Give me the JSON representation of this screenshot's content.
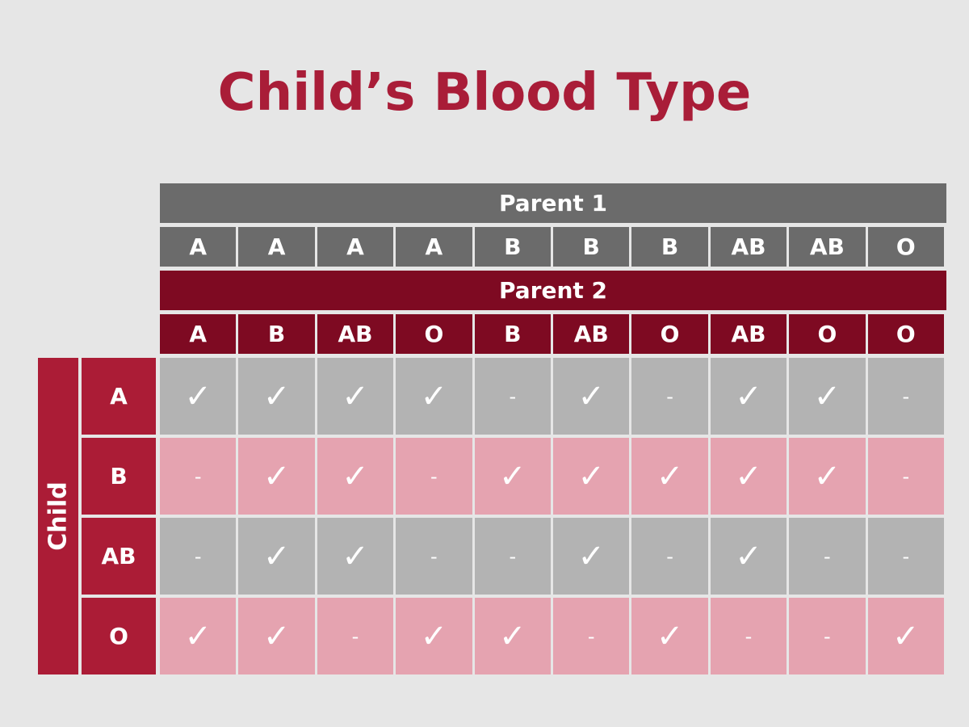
{
  "title": "Child’s Blood Type",
  "table": {
    "parent1_label": "Parent 1",
    "parent1": [
      "A",
      "A",
      "A",
      "A",
      "B",
      "B",
      "B",
      "AB",
      "AB",
      "O"
    ],
    "parent2_label": "Parent 2",
    "parent2": [
      "A",
      "B",
      "AB",
      "O",
      "B",
      "AB",
      "O",
      "AB",
      "O",
      "O"
    ],
    "child_label": "Child",
    "rows": [
      {
        "label": "A",
        "cells": [
          "✓",
          "✓",
          "✓",
          "✓",
          "-",
          "✓",
          "-",
          "✓",
          "✓",
          "-"
        ]
      },
      {
        "label": "B",
        "cells": [
          "-",
          "✓",
          "✓",
          "-",
          "✓",
          "✓",
          "✓",
          "✓",
          "✓",
          "-"
        ]
      },
      {
        "label": "AB",
        "cells": [
          "-",
          "✓",
          "✓",
          "-",
          "-",
          "✓",
          "-",
          "✓",
          "-",
          "-"
        ]
      },
      {
        "label": "O",
        "cells": [
          "✓",
          "✓",
          "-",
          "✓",
          "✓",
          "-",
          "✓",
          "-",
          "-",
          "✓"
        ]
      }
    ]
  }
}
